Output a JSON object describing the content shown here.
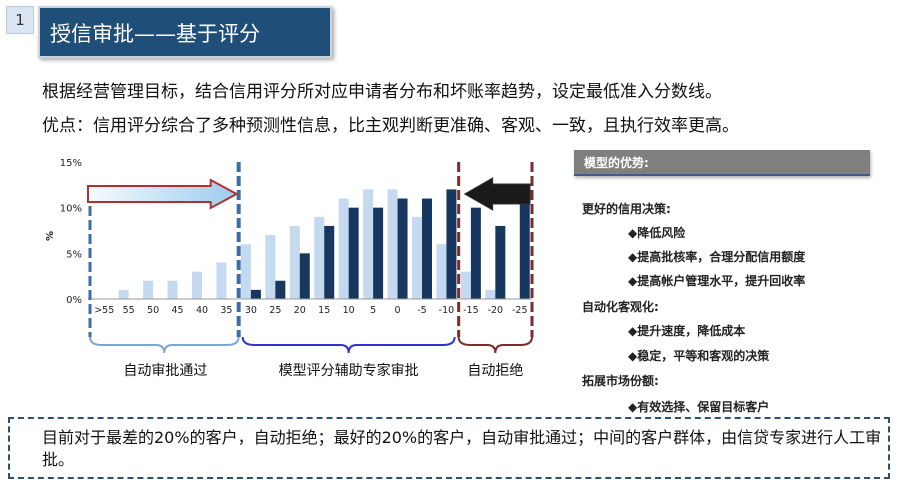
{
  "slide_number": "1",
  "title": "授信审批——基于评分",
  "intro": [
    "根据经营管理目标，结合信用评分所对应申请者分布和坏账率趋势，设定最低准入分数线。",
    "优点：信用评分综合了多种预测性信息，比主观判断更准确、客观、一致，且执行效率更高。"
  ],
  "chart_data": {
    "type": "bar",
    "categories": [
      ">55",
      "55",
      "50",
      "45",
      "40",
      "35",
      "30",
      "25",
      "20",
      "15",
      "10",
      "5",
      "0",
      "-5",
      "-10",
      "-15",
      "-20",
      "-25"
    ],
    "series": [
      {
        "values": [
          0,
          1,
          2,
          2,
          3,
          4,
          6,
          7,
          8,
          9,
          11,
          12,
          12,
          9,
          6,
          3,
          1,
          0
        ],
        "color": "#c5d9f1"
      },
      {
        "values": [
          0,
          0,
          0,
          0,
          0,
          0,
          1,
          2,
          5,
          8,
          10,
          10,
          11,
          11,
          12,
          10,
          8,
          12
        ],
        "color": "#17375e"
      }
    ],
    "ylabel": "%",
    "yticks": [
      "0%",
      "5%",
      "10%",
      "15%"
    ],
    "ylim": [
      0,
      15
    ],
    "regions": [
      {
        "label": "自动审批通过",
        "from": ">55",
        "to": "35",
        "border": "#7aa7d6",
        "arrow": "right"
      },
      {
        "label": "模型评分辅助专家审批",
        "from": "30",
        "to": "-10",
        "border": "#3333cc"
      },
      {
        "label": "自动拒绝",
        "from": "-15",
        "to": "-25",
        "border": "#7b2c2c",
        "arrow": "left"
      }
    ]
  },
  "panel": {
    "header": "模型的优势:",
    "lines": [
      {
        "text": "更好的信用决策:",
        "level": 0
      },
      {
        "text": "◆降低风险",
        "level": 1
      },
      {
        "text": "◆提高批核率，合理分配信用额度",
        "level": 1
      },
      {
        "text": "◆提高帐户管理水平，提升回收率",
        "level": 1
      },
      {
        "text": "自动化客观化:",
        "level": 0
      },
      {
        "text": "◆提升速度，降低成本",
        "level": 1
      },
      {
        "text": "◆稳定，平等和客观的决策",
        "level": 1
      },
      {
        "text": "拓展市场份额:",
        "level": 0
      },
      {
        "text": "◆有效选择、保留目标客户",
        "level": 1
      }
    ]
  },
  "note": "目前对于最差的20%的客户，自动拒绝；最好的20%的客户，自动审批通过；中间的客户群体，由信贷专家进行人工审批。"
}
